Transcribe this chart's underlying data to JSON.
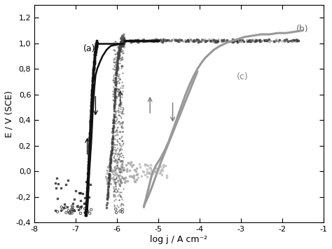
{
  "title": "",
  "xlabel": "log j / A cm⁻²",
  "ylabel": "E / V (SCE)",
  "xlim": [
    -8,
    -1
  ],
  "ylim": [
    -0.4,
    1.3
  ],
  "xticks": [
    -8,
    -7,
    -6,
    -5,
    -4,
    -3,
    -2,
    -1
  ],
  "yticks": [
    -0.4,
    -0.2,
    0.0,
    0.2,
    0.4,
    0.6,
    0.8,
    1.0,
    1.2
  ],
  "ytick_labels": [
    "-0,4",
    "-0,2",
    "0,0",
    "0,2",
    "0,4",
    "0,6",
    "0,8",
    "1,0",
    "1,2"
  ],
  "color_a_line": "#111111",
  "color_b_scatter": "#555555",
  "color_c_line": "#999999",
  "color_scatter_gray": "#aaaaaa",
  "color_scatter_darkgray": "#777777"
}
